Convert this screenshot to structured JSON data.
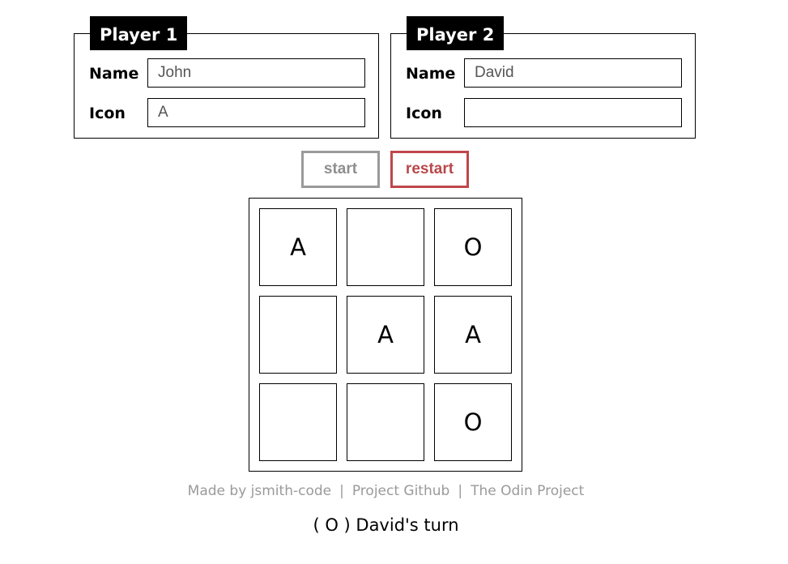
{
  "players": [
    {
      "legend": "Player 1",
      "name_label": "Name",
      "icon_label": "Icon",
      "name_value": "John",
      "icon_value": "A"
    },
    {
      "legend": "Player 2",
      "name_label": "Name",
      "icon_label": "Icon",
      "name_value": "David",
      "icon_value": ""
    }
  ],
  "controls": {
    "start_label": "start",
    "restart_label": "restart",
    "colors": {
      "start": "#9a9a9a",
      "restart": "#c0474b"
    }
  },
  "board": {
    "cells": [
      "A",
      "",
      "O",
      "",
      "A",
      "A",
      "",
      "",
      "O"
    ]
  },
  "footer": {
    "made_by": "Made by jsmith-code",
    "separator": "|",
    "github": "Project Github",
    "odin": "The Odin Project"
  },
  "status": {
    "text": "( O ) David's turn"
  }
}
